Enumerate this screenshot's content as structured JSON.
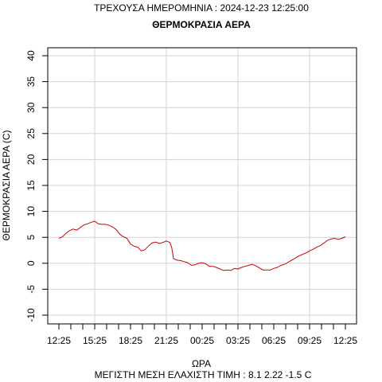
{
  "header": {
    "date_line": "ΤΡΕΧΟΥΣΑ ΗΜΕΡΟΜΗΝΙΑ : 2024-12-23 12:25:00"
  },
  "footer": {
    "stats_line": "ΜΕΓΙΣΤΗ ΜΕΣΗ ΕΛΑΧΙΣΤΗ ΤΙΜΗ :  8.1  2.22  -1.5   C"
  },
  "chart_data": {
    "type": "line",
    "title": "ΘΕΡΜΟΚΡΑΣΙΑ ΑΕΡΑ",
    "xlabel": "ΩΡΑ",
    "ylabel": "ΘΕΡΜΟΚΡΑΣΙΑ ΑΕΡΑ (C)",
    "xlim": [
      0,
      24
    ],
    "ylim": [
      -10,
      40
    ],
    "yticks": [
      -10,
      -5,
      0,
      5,
      10,
      15,
      20,
      25,
      30,
      35,
      40
    ],
    "xtick_labels": [
      {
        "x": 0,
        "label": "12:25"
      },
      {
        "x": 3,
        "label": "15:25"
      },
      {
        "x": 6,
        "label": "18:25"
      },
      {
        "x": 9,
        "label": "21:25"
      },
      {
        "x": 12,
        "label": "00:25"
      },
      {
        "x": 15,
        "label": "03:25"
      },
      {
        "x": 18,
        "label": "06:25"
      },
      {
        "x": 21,
        "label": "09:25"
      },
      {
        "x": 24,
        "label": "12:25"
      }
    ],
    "minor_xticks": [
      1,
      2,
      4,
      5,
      7,
      8,
      10,
      11,
      13,
      14,
      16,
      17,
      19,
      20,
      22,
      23
    ],
    "grid": true,
    "series": [
      {
        "color": "#cc0000",
        "x": [
          0,
          0.3,
          0.6,
          0.9,
          1.2,
          1.5,
          1.8,
          2.1,
          2.4,
          2.7,
          3.0,
          3.3,
          3.6,
          3.9,
          4.2,
          4.5,
          4.8,
          5.1,
          5.4,
          5.7,
          6.0,
          6.3,
          6.6,
          6.9,
          7.2,
          7.5,
          7.8,
          8.1,
          8.4,
          8.7,
          9.0,
          9.3,
          9.45,
          9.6,
          9.9,
          10.2,
          10.5,
          10.8,
          11.1,
          11.4,
          11.7,
          12.0,
          12.3,
          12.6,
          12.9,
          13.2,
          13.5,
          13.8,
          14.1,
          14.4,
          14.7,
          15.0,
          15.3,
          15.6,
          15.9,
          16.2,
          16.5,
          16.8,
          17.1,
          17.4,
          17.7,
          18.0,
          18.3,
          18.6,
          18.9,
          19.2,
          19.5,
          19.8,
          20.1,
          20.4,
          20.7,
          21.0,
          21.3,
          21.6,
          21.9,
          22.2,
          22.5,
          22.8,
          23.1,
          23.4,
          23.7,
          24.0
        ],
        "y": [
          4.8,
          5.1,
          5.8,
          6.3,
          6.6,
          6.4,
          6.9,
          7.4,
          7.6,
          7.9,
          8.1,
          7.6,
          7.5,
          7.5,
          7.3,
          7.0,
          6.5,
          5.6,
          5.1,
          4.8,
          3.7,
          3.3,
          3.1,
          2.4,
          2.6,
          3.3,
          3.9,
          4.1,
          3.8,
          4.0,
          4.3,
          4.0,
          3.0,
          0.9,
          0.6,
          0.5,
          0.3,
          0.1,
          -0.4,
          -0.3,
          0.0,
          0.1,
          -0.1,
          -0.6,
          -0.6,
          -0.8,
          -1.1,
          -1.4,
          -1.3,
          -1.4,
          -1.0,
          -1.1,
          -0.8,
          -0.6,
          -0.4,
          -0.2,
          -0.5,
          -0.9,
          -1.3,
          -1.3,
          -1.3,
          -1.0,
          -0.8,
          -0.4,
          -0.2,
          0.2,
          0.6,
          1.0,
          1.4,
          1.7,
          2.0,
          2.4,
          2.7,
          3.1,
          3.4,
          3.9,
          4.4,
          4.7,
          4.8,
          4.6,
          4.8,
          5.1
        ]
      }
    ]
  }
}
